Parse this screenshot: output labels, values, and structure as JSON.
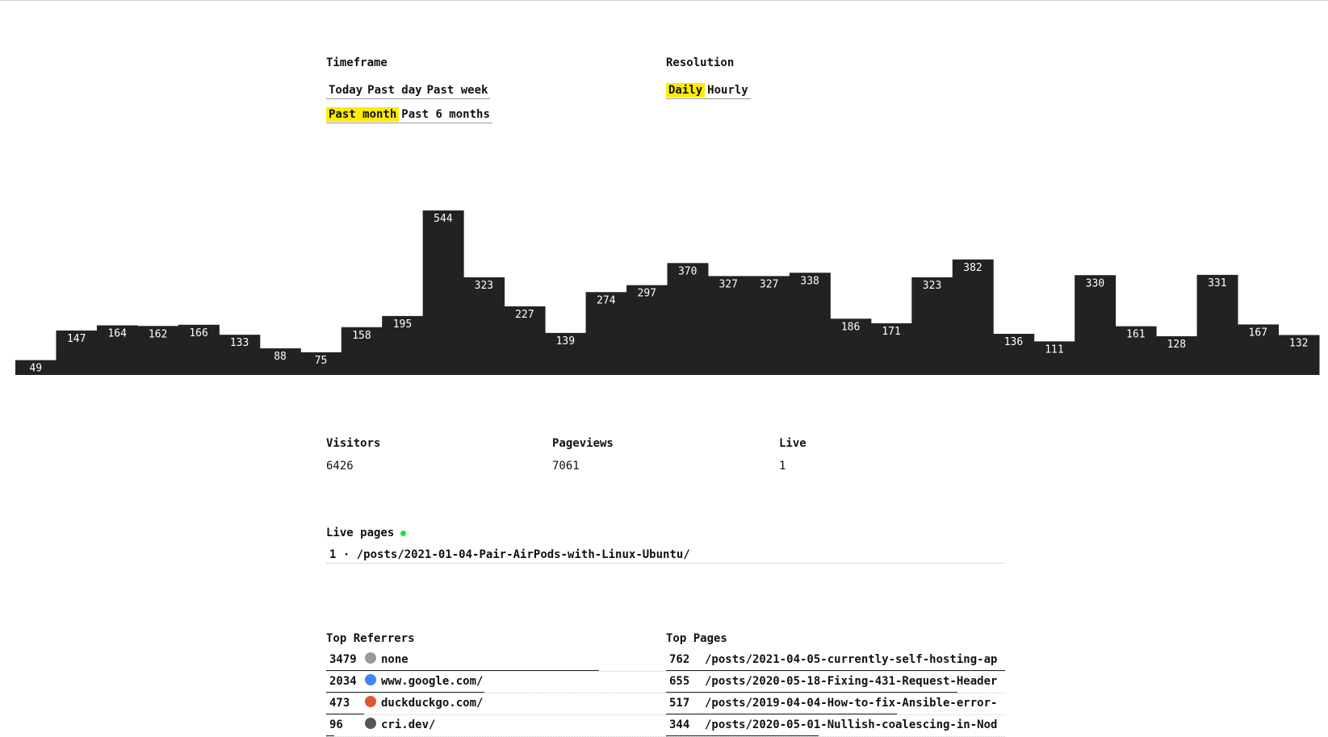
{
  "timeframe": {
    "title": "Timeframe",
    "row1": [
      {
        "label": "Today",
        "active": false
      },
      {
        "label": "Past day",
        "active": false
      },
      {
        "label": "Past week",
        "active": false
      }
    ],
    "row2": [
      {
        "label": "Past month",
        "active": true
      },
      {
        "label": "Past 6 months",
        "active": false
      }
    ]
  },
  "resolution": {
    "title": "Resolution",
    "options": [
      {
        "label": "Daily",
        "active": true
      },
      {
        "label": "Hourly",
        "active": false
      }
    ]
  },
  "chart_data": {
    "type": "bar",
    "values": [
      49,
      147,
      164,
      162,
      166,
      133,
      88,
      75,
      158,
      195,
      544,
      323,
      227,
      139,
      274,
      297,
      370,
      327,
      327,
      338,
      186,
      171,
      323,
      382,
      136,
      111,
      330,
      161,
      128,
      331,
      167,
      132
    ],
    "ylim": [
      0,
      544
    ]
  },
  "stats": {
    "visitors_label": "Visitors",
    "visitors_value": "6426",
    "pageviews_label": "Pageviews",
    "pageviews_value": "7061",
    "live_label": "Live",
    "live_value": "1"
  },
  "live_pages": {
    "title": "Live pages",
    "items": [
      {
        "count": "1",
        "separator": "·",
        "path": "/posts/2021-01-04-Pair-AirPods-with-Linux-Ubuntu/"
      }
    ]
  },
  "referrers": {
    "title": "Top Referrers",
    "items": [
      {
        "count": "3479",
        "name": "none",
        "icon": "arrow-circle-icon",
        "icon_color": "#9a9a9a",
        "share": 1.0
      },
      {
        "count": "2034",
        "name": "www.google.com/",
        "icon": "google-icon",
        "icon_color": "#4285f4",
        "share": 0.58
      },
      {
        "count": "473",
        "name": "duckduckgo.com/",
        "icon": "duckduckgo-icon",
        "icon_color": "#de5833",
        "share": 0.14
      },
      {
        "count": "96",
        "name": "cri.dev/",
        "icon": "cri-icon",
        "icon_color": "#555555",
        "share": 0.03
      }
    ]
  },
  "pages": {
    "title": "Top Pages",
    "items": [
      {
        "count": "762",
        "path": "/posts/2021-04-05-currently-self-hosting-ap",
        "share": 1.0
      },
      {
        "count": "655",
        "path": "/posts/2020-05-18-Fixing-431-Request-Header",
        "share": 0.86
      },
      {
        "count": "517",
        "path": "/posts/2019-04-04-How-to-fix-Ansible-error-",
        "share": 0.68
      },
      {
        "count": "344",
        "path": "/posts/2020-05-01-Nullish-coalescing-in-Nod",
        "share": 0.45
      }
    ]
  }
}
